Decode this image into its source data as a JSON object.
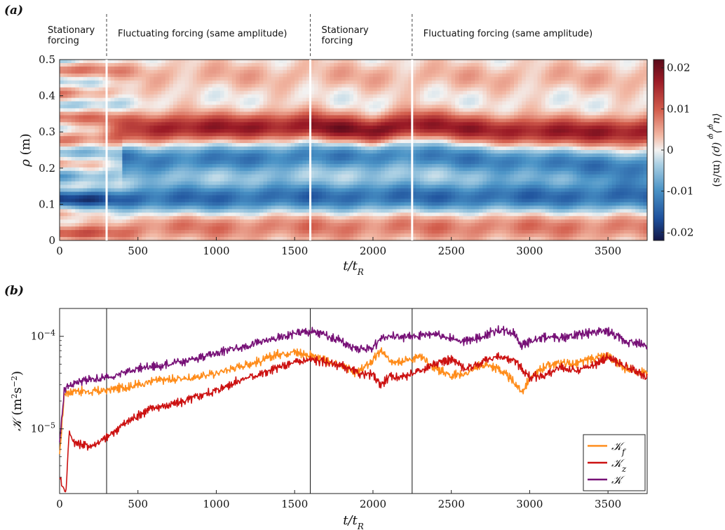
{
  "chart_data": [
    {
      "panel_label": "(a)",
      "type": "heatmap",
      "xlabel": "t/t_R",
      "ylabel": "ρ (m)",
      "xlim": [
        0,
        3750
      ],
      "ylim": [
        0,
        0.5
      ],
      "x_ticks": [
        "0",
        "500",
        "1000",
        "1500",
        "2000",
        "2500",
        "3000",
        "3500"
      ],
      "y_ticks": [
        "0",
        "0.1",
        "0.2",
        "0.3",
        "0.4",
        "0.5"
      ],
      "colorbar": {
        "label": "⟨u_φ⟩_φ (ρ) (m/s)",
        "range": [
          -0.022,
          0.022
        ],
        "ticks": [
          "0.02",
          "0.01",
          "0",
          "-0.01",
          "-0.02"
        ],
        "tick_values": [
          0.02,
          0.01,
          0,
          -0.01,
          -0.02
        ],
        "colormap": "blue-white-red (diverging)"
      },
      "phase_boundaries": [
        300,
        1600,
        2250
      ],
      "phases": [
        {
          "label_lines": [
            "Stationary",
            "forcing"
          ],
          "x_start": 0,
          "x_end": 300
        },
        {
          "label_lines": [
            "Fluctuating forcing (same amplitude)"
          ],
          "x_start": 300,
          "x_end": 1600
        },
        {
          "label_lines": [
            "Stationary",
            "forcing"
          ],
          "x_start": 1600,
          "x_end": 2250
        },
        {
          "label_lines": [
            "Fluctuating forcing (same amplitude)"
          ],
          "x_start": 2250,
          "x_end": 3750
        }
      ],
      "jets": [
        {
          "description": "strong eastward jet",
          "rho": [
            [
              0,
              0.31
            ],
            [
              800,
              0.31
            ],
            [
              1600,
              0.315
            ],
            [
              2000,
              0.3
            ],
            [
              2250,
              0.32
            ],
            [
              2900,
              0.3
            ],
            [
              3750,
              0.3
            ]
          ],
          "amplitude": 0.017
        },
        {
          "description": "near-wall positive flow",
          "rho": [
            [
              0,
              0.04
            ],
            [
              3750,
              0.04
            ]
          ],
          "amplitude": 0.008
        },
        {
          "description": "outer weak positive band",
          "rho": [
            [
              0,
              0.46
            ],
            [
              3750,
              0.45
            ]
          ],
          "amplitude": 0.004
        },
        {
          "description": "westward band",
          "rho": [
            [
              0,
              0.11
            ],
            [
              1600,
              0.12
            ],
            [
              2250,
              0.12
            ],
            [
              3750,
              0.12
            ]
          ],
          "amplitude": -0.014
        },
        {
          "description": "westward band",
          "rho": [
            [
              400,
              0.22
            ],
            [
              1300,
              0.23
            ],
            [
              2100,
              0.24
            ],
            [
              3750,
              0.2
            ]
          ],
          "amplitude": -0.012
        }
      ]
    },
    {
      "panel_label": "(b)",
      "type": "line",
      "xlabel": "t/t_R",
      "ylabel": "K (m²s⁻²)",
      "xlim": [
        0,
        3750
      ],
      "ylim": [
        2e-06,
        0.0002
      ],
      "yscale": "log",
      "x_ticks": [
        "0",
        "500",
        "1000",
        "1500",
        "2000",
        "2500",
        "3000",
        "3500"
      ],
      "y_ticks": [
        {
          "value": 1e-05,
          "base": "10",
          "exp": "−5"
        },
        {
          "value": 0.0001,
          "base": "10",
          "exp": "−4"
        }
      ],
      "vlines": [
        300,
        1600,
        2250
      ],
      "legend_position": "bottom-right",
      "series": [
        {
          "name": "K_f",
          "legend_main": "K",
          "legend_sub": "f",
          "color": "#ff8c1a",
          "points": [
            [
              0,
              5e-06
            ],
            [
              30,
              2.4e-05
            ],
            [
              100,
              2.6e-05
            ],
            [
              200,
              2.5e-05
            ],
            [
              300,
              2.6e-05
            ],
            [
              400,
              2.8e-05
            ],
            [
              500,
              3e-05
            ],
            [
              600,
              3.3e-05
            ],
            [
              700,
              3.4e-05
            ],
            [
              800,
              3.5e-05
            ],
            [
              900,
              3.7e-05
            ],
            [
              1000,
              4e-05
            ],
            [
              1100,
              4.5e-05
            ],
            [
              1200,
              5e-05
            ],
            [
              1300,
              5.5e-05
            ],
            [
              1400,
              6.5e-05
            ],
            [
              1500,
              6.8e-05
            ],
            [
              1600,
              6.2e-05
            ],
            [
              1700,
              5.5e-05
            ],
            [
              1800,
              4.8e-05
            ],
            [
              1900,
              4e-05
            ],
            [
              2000,
              5.5e-05
            ],
            [
              2050,
              7e-05
            ],
            [
              2100,
              5.5e-05
            ],
            [
              2200,
              5.5e-05
            ],
            [
              2300,
              6e-05
            ],
            [
              2400,
              4.5e-05
            ],
            [
              2500,
              3.8e-05
            ],
            [
              2600,
              4e-05
            ],
            [
              2700,
              5e-05
            ],
            [
              2800,
              4.5e-05
            ],
            [
              2900,
              3.2e-05
            ],
            [
              2950,
              2.5e-05
            ],
            [
              3000,
              3.5e-05
            ],
            [
              3100,
              4.8e-05
            ],
            [
              3200,
              5.2e-05
            ],
            [
              3300,
              5e-05
            ],
            [
              3400,
              5.8e-05
            ],
            [
              3500,
              6e-05
            ],
            [
              3600,
              4.5e-05
            ],
            [
              3750,
              4e-05
            ]
          ]
        },
        {
          "name": "K_z",
          "legend_main": "K",
          "legend_sub": "z",
          "color": "#cc1111",
          "points": [
            [
              0,
              3e-06
            ],
            [
              40,
              2e-06
            ],
            [
              60,
              9e-06
            ],
            [
              100,
              7e-06
            ],
            [
              200,
              6.5e-06
            ],
            [
              300,
              8e-06
            ],
            [
              400,
              1.1e-05
            ],
            [
              500,
              1.4e-05
            ],
            [
              600,
              1.7e-05
            ],
            [
              700,
              1.8e-05
            ],
            [
              800,
              2e-05
            ],
            [
              900,
              2.3e-05
            ],
            [
              1000,
              2.6e-05
            ],
            [
              1100,
              3.1e-05
            ],
            [
              1200,
              3.6e-05
            ],
            [
              1300,
              4e-05
            ],
            [
              1400,
              4.6e-05
            ],
            [
              1500,
              5.2e-05
            ],
            [
              1600,
              5.6e-05
            ],
            [
              1700,
              5.3e-05
            ],
            [
              1800,
              4.8e-05
            ],
            [
              1900,
              4e-05
            ],
            [
              2000,
              3.8e-05
            ],
            [
              2050,
              3e-05
            ],
            [
              2100,
              3.6e-05
            ],
            [
              2200,
              3.7e-05
            ],
            [
              2300,
              4.2e-05
            ],
            [
              2400,
              5.2e-05
            ],
            [
              2500,
              5.6e-05
            ],
            [
              2600,
              4.4e-05
            ],
            [
              2700,
              5.4e-05
            ],
            [
              2800,
              6e-05
            ],
            [
              2900,
              5.6e-05
            ],
            [
              3000,
              3.6e-05
            ],
            [
              3100,
              3.8e-05
            ],
            [
              3200,
              4.6e-05
            ],
            [
              3300,
              4.2e-05
            ],
            [
              3400,
              4.8e-05
            ],
            [
              3500,
              6e-05
            ],
            [
              3600,
              4.8e-05
            ],
            [
              3750,
              3.6e-05
            ]
          ]
        },
        {
          "name": "K",
          "legend_main": "K",
          "legend_sub": "",
          "color": "#771177",
          "points": [
            [
              0,
              7e-06
            ],
            [
              30,
              2.7e-05
            ],
            [
              100,
              3.2e-05
            ],
            [
              200,
              3.4e-05
            ],
            [
              300,
              3.6e-05
            ],
            [
              400,
              4e-05
            ],
            [
              500,
              4.5e-05
            ],
            [
              600,
              4.7e-05
            ],
            [
              700,
              5e-05
            ],
            [
              800,
              5.3e-05
            ],
            [
              900,
              6e-05
            ],
            [
              1000,
              6.6e-05
            ],
            [
              1100,
              7.3e-05
            ],
            [
              1200,
              8e-05
            ],
            [
              1300,
              8.8e-05
            ],
            [
              1400,
              9.5e-05
            ],
            [
              1500,
              0.000108
            ],
            [
              1600,
              0.000112
            ],
            [
              1700,
              0.000103
            ],
            [
              1800,
              8.8e-05
            ],
            [
              1900,
              7.2e-05
            ],
            [
              2000,
              7.5e-05
            ],
            [
              2050,
              9.6e-05
            ],
            [
              2100,
              0.0001
            ],
            [
              2200,
              9.8e-05
            ],
            [
              2300,
              0.000102
            ],
            [
              2400,
              0.000108
            ],
            [
              2500,
              9.4e-05
            ],
            [
              2600,
              8.8e-05
            ],
            [
              2700,
              0.0001
            ],
            [
              2800,
              0.000118
            ],
            [
              2900,
              0.00011
            ],
            [
              2950,
              8e-05
            ],
            [
              3000,
              8.8e-05
            ],
            [
              3100,
              9.8e-05
            ],
            [
              3200,
              9.6e-05
            ],
            [
              3300,
              0.000104
            ],
            [
              3400,
              0.00011
            ],
            [
              3500,
              0.000113
            ],
            [
              3600,
              9e-05
            ],
            [
              3750,
              8e-05
            ]
          ]
        }
      ]
    }
  ]
}
